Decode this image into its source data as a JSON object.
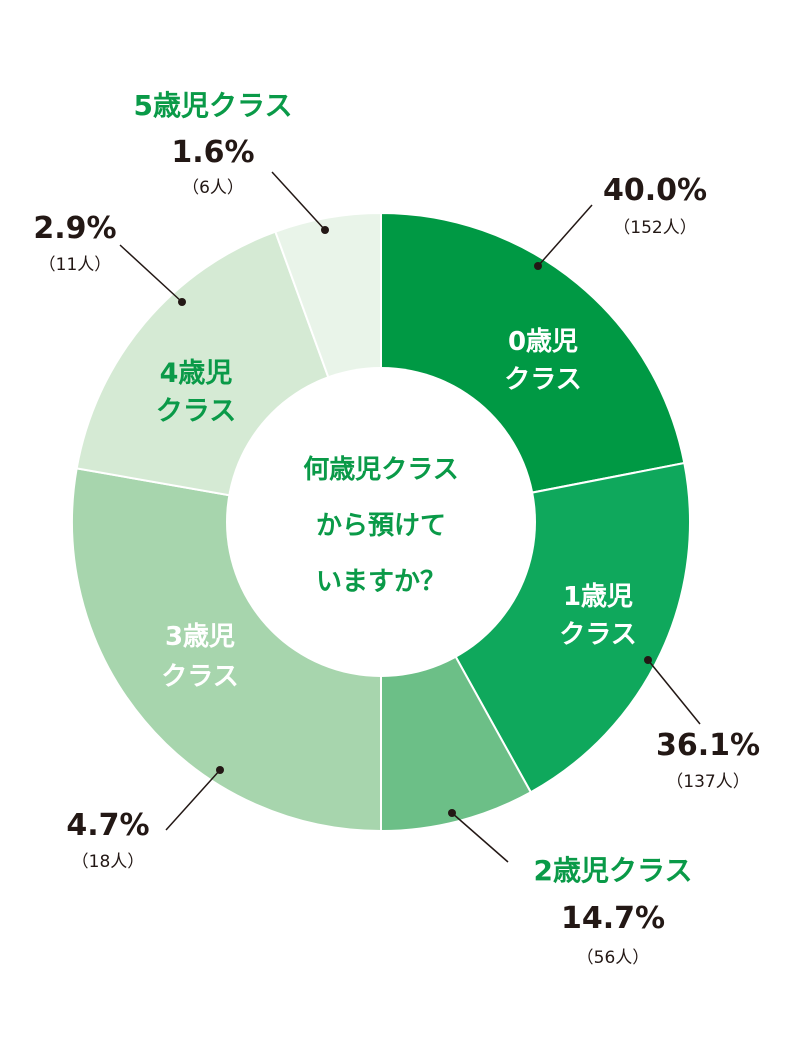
{
  "chart_data": {
    "type": "pie",
    "donut": true,
    "title": "何歳児クラスから預けていますか？",
    "title_lines": [
      "何歳児クラス",
      "から預けて",
      "いますか？"
    ],
    "categories": [
      "0歳児クラス",
      "1歳児クラス",
      "2歳児クラス",
      "3歳児クラス",
      "4歳児クラス",
      "5歳児クラス"
    ],
    "slice_label_lines": [
      [
        "0歳児",
        "クラス"
      ],
      [
        "1歳児",
        "クラス"
      ],
      [
        "2歳児クラス"
      ],
      [
        "3歳児",
        "クラス"
      ],
      [
        "4歳児",
        "クラス"
      ],
      [
        "5歳児クラス"
      ]
    ],
    "values_percent_labels": [
      "40.0%",
      "36.1%",
      "14.7%",
      "4.7%",
      "2.9%",
      "1.6%"
    ],
    "values": [
      40.0,
      36.1,
      14.7,
      4.7,
      2.9,
      1.6
    ],
    "count_labels": [
      "（152人）",
      "（137人）",
      "（56人）",
      "（18人）",
      "（11人）",
      "（6人）"
    ],
    "counts": [
      152,
      137,
      56,
      18,
      11,
      6
    ],
    "colors": [
      "#009944",
      "#0fa85c",
      "#6cbf87",
      "#a7d5ad",
      "#d5ead4",
      "#e9f4e9"
    ],
    "label_color": "#0a9a48"
  }
}
